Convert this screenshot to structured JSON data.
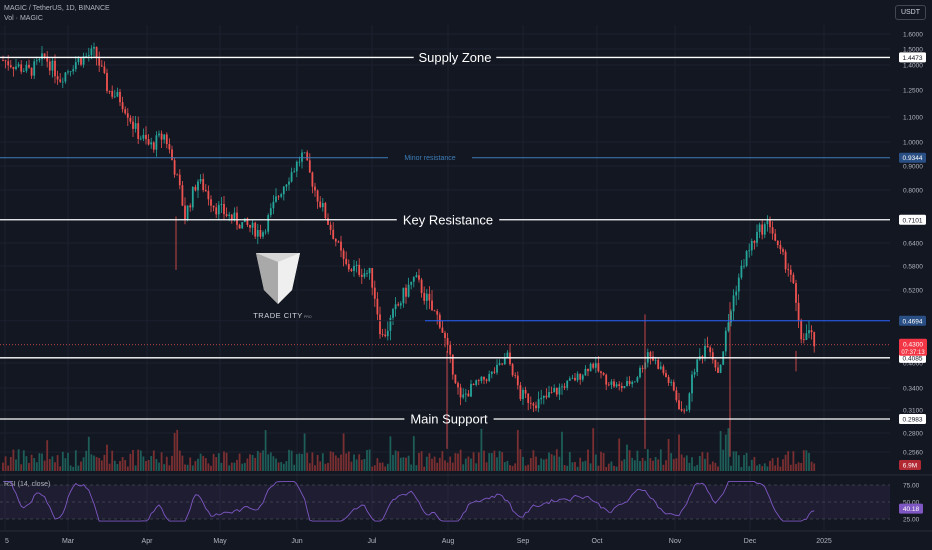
{
  "header": {
    "title": "MAGIC / TetherUS, 1D, BINANCE",
    "vol_label": "Vol · MAGIC",
    "currency": "USDT",
    "rsi_label": "RSI (14, close)"
  },
  "watermark": {
    "brand": "TRADE CITY",
    "sub": "PRO"
  },
  "colors": {
    "background": "#131722",
    "up": "#26a69a",
    "down": "#ef5350",
    "level_white": "#ffffff",
    "level_blue": "#2962ff",
    "minor_line": "#3d7eb8",
    "rsi_line": "#7e57c2"
  },
  "price_axis": {
    "ticks": [
      "1.6000",
      "1.5000",
      "1.4000",
      "1.2500",
      "1.1000",
      "1.0000",
      "0.9000",
      "0.8000",
      "0.6400",
      "0.5800",
      "0.5200",
      "0.4000",
      "0.3400",
      "0.3100",
      "0.2800",
      "0.2560"
    ],
    "tick_values": [
      1.6,
      1.5,
      1.4,
      1.25,
      1.1,
      1.0,
      0.9,
      0.8,
      0.64,
      0.58,
      0.52,
      0.4,
      0.34,
      0.31,
      0.28,
      0.256
    ],
    "current_price": "0.4300",
    "countdown": "07:37:13",
    "volume_label": "6.9M"
  },
  "time_axis": {
    "labels": [
      "5",
      "Mar",
      "Apr",
      "May",
      "Jun",
      "Jul",
      "Aug",
      "Sep",
      "Oct",
      "Nov",
      "Dec",
      "2025"
    ]
  },
  "rsi_axis": {
    "ticks": [
      "75.00",
      "50.00",
      "25.00"
    ],
    "value": "40.18"
  },
  "chart_data": {
    "type": "candlestick",
    "title": "MAGIC / TetherUS, 1D, BINANCE",
    "levels": [
      {
        "label": "Supply Zone",
        "value": 1.4473,
        "price_label": "1.4473",
        "style": "white"
      },
      {
        "label": "Minor resistance",
        "value": 0.9344,
        "price_label": "0.9344",
        "style": "minor"
      },
      {
        "label": "Key Resistance",
        "value": 0.7101,
        "price_label": "0.7101",
        "style": "white"
      },
      {
        "label": "",
        "value": 0.4694,
        "price_label": "0.4694",
        "style": "blue"
      },
      {
        "label": "",
        "value": 0.4085,
        "price_label": "0.4085",
        "style": "white"
      },
      {
        "label": "Main Support",
        "value": 0.2983,
        "price_label": "0.2983",
        "style": "white"
      }
    ],
    "months": [
      "Mar",
      "Apr",
      "May",
      "Jun",
      "Jul",
      "Aug",
      "Sep",
      "Oct",
      "Nov",
      "Dec"
    ],
    "approx_monthly_close": [
      1.35,
      1.0,
      0.82,
      0.9,
      0.5,
      0.29,
      0.37,
      0.41,
      0.35,
      0.52
    ],
    "current_price": 0.43,
    "rsi": {
      "period": 14,
      "last": 40.18,
      "bands": [
        25,
        50,
        75
      ]
    }
  }
}
